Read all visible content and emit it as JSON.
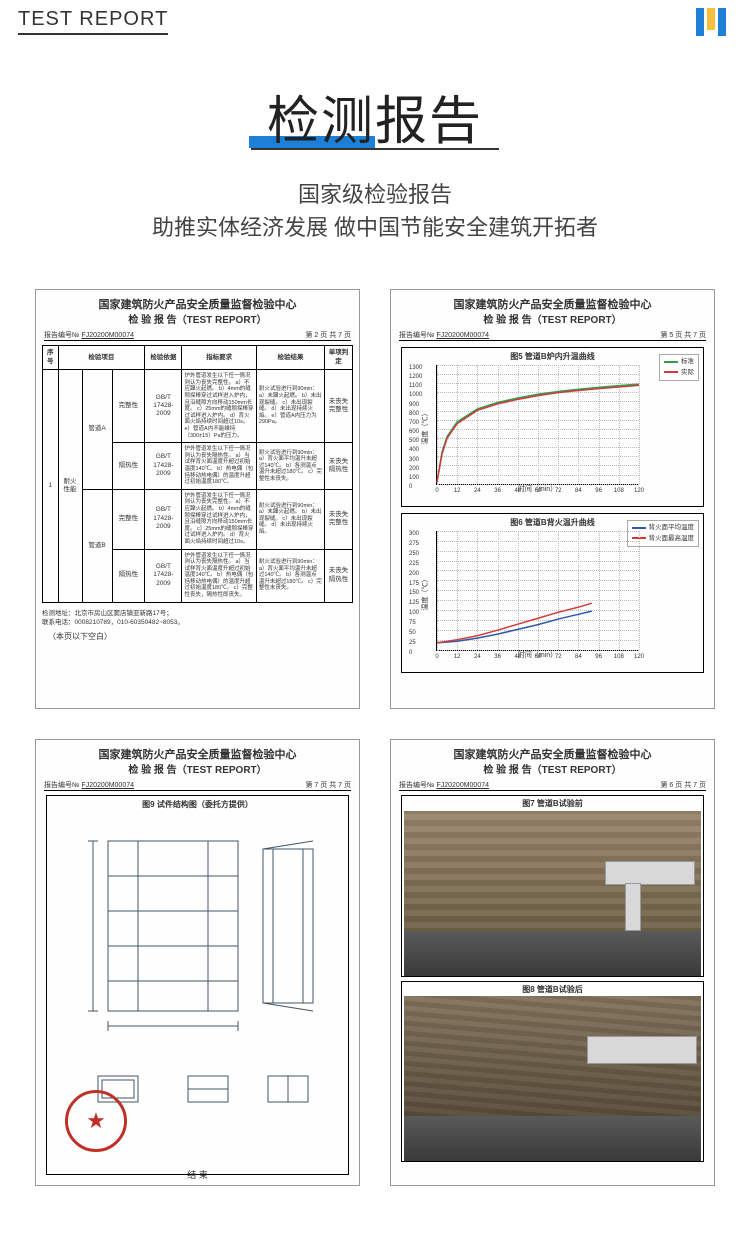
{
  "header": {
    "label": "TEST REPORT"
  },
  "title": {
    "main": "检测报告",
    "sub_line1": "国家级检验报告",
    "sub_line2": "助推实体经济发展 做中国节能安全建筑开拓者"
  },
  "colors": {
    "accent_blue": "#1e7fd6",
    "accent_yellow": "#f5c13d",
    "text_dark": "#333333",
    "stamp_red": "#c03028",
    "series_green": "#2e9e4a",
    "series_red": "#d23a3a",
    "series_blue": "#2e5aaa"
  },
  "report_common": {
    "org": "国家建筑防火产品安全质量监督检验中心",
    "title": "检 验 报 告（TEST REPORT）",
    "ref_prefix": "报告编号№",
    "ref_num": "FJ20200M00074"
  },
  "card_table": {
    "page": "第 2 页 共 7 页",
    "headers": [
      "序号",
      "检验项目",
      "检验依据",
      "指标要求",
      "检验结果",
      "单项判定"
    ],
    "row_seq": "1",
    "row_cat": "耐火\n性能",
    "groups": [
      {
        "group": "管道A",
        "rows": [
          {
            "item": "完整性",
            "std": "GB/T 17428-2009",
            "req": "炉外管道发生以下任一情况则认为丧失完整性。\na）不应蹿火起燃。\nb）4mm的缝隙探棒穿过试样进入炉内，且沿缝隙方向移动150mm长度。\nc）25mm的缝隙探棒穿过试样进入炉内。\nd）背火面火焰持续时间超过10s。\ne）管道A内不能维持（300±15）Pa的压力。",
            "res": "耐火试验进行到90min：\na）未蹿火起燃。\nb）未出现裂缝。\nc）未出现裂缝。\nd）未出现持续火焰。\ne）管道A内压力为290Pa。",
            "judge": "未丧失\n完整性"
          },
          {
            "item": "隔热性",
            "std": "GB/T 17428-2009",
            "req": "炉外管道发生以下任一情况则认为丧失隔热性。\na）当试样背火面温度升超过初始温度140℃。\nb）热电偶（包括移动热电偶）的温度升超过初始温度180℃。",
            "res": "耐火试验进行到90min：\na）背火面平均温升未超过140℃。\nb）各测温点温升未超过180℃。\nc）完整性未丧失。",
            "judge": "未丧失\n隔热性"
          }
        ]
      },
      {
        "group": "管道B",
        "rows": [
          {
            "item": "完整性",
            "std": "GB/T 17428-2009",
            "req": "炉外管道发生以下任一情况则认为丧失完整性。\na）不应蹿火起燃。\nb）4mm的缝隙探棒穿过试样进入炉内，且沿缝隙方向移动150mm长度。\nc）25mm的缝隙探棒穿过试样进入炉内。\nd）背火面火焰持续时间超过10s。",
            "res": "耐火试验进行到90min：\na）未蹿火起燃。\nb）未出现裂缝。\nc）未出现裂缝。\nd）未出现持续火焰。",
            "judge": "未丧失\n完整性"
          },
          {
            "item": "隔热性",
            "std": "GB/T 17428-2009",
            "req": "炉外管道发生以下任一情况则认为丧失隔热性。\na）当试样背火面温度升超过初始温度140℃。\nb）热电偶（包括移动热电偶）的温度升超过初始温度180℃。\nc）完整性丧失，隔热性即丧失。",
            "res": "耐火试验进行到90min：\na）背火面平均温升未超过140℃。\nb）各测温点温升未超过180℃。\nc）完整性未丧失。",
            "judge": "未丧失\n隔热性"
          }
        ]
      }
    ],
    "addr_label": "检测地址：",
    "addr": "北京市房山区窦店镇亚新路17号；",
    "tel_label": "联系电话：",
    "tel": "0008210789，010-60350482~8053。",
    "blank": "（本页以下空白）"
  },
  "card_charts": {
    "page": "第 5 页 共 7 页",
    "chart1": {
      "title": "图5 管道B炉内升温曲线",
      "y_label": "温度（℃）",
      "x_label": "时间（min）",
      "y_ticks": [
        0,
        100,
        200,
        300,
        400,
        500,
        600,
        700,
        800,
        900,
        1000,
        1100,
        1200,
        1300
      ],
      "y_max": 1300,
      "x_ticks": [
        0,
        12,
        24,
        36,
        48,
        60,
        72,
        84,
        96,
        108,
        120
      ],
      "x_max": 120,
      "legend": [
        {
          "label": "标准",
          "color": "#2e9e4a"
        },
        {
          "label": "实际",
          "color": "#d23a3a"
        }
      ],
      "series": [
        {
          "color": "#2e9e4a",
          "points": [
            [
              0,
              20
            ],
            [
              3,
              350
            ],
            [
              6,
              520
            ],
            [
              12,
              680
            ],
            [
              24,
              820
            ],
            [
              36,
              890
            ],
            [
              48,
              940
            ],
            [
              60,
              980
            ],
            [
              72,
              1010
            ],
            [
              84,
              1035
            ],
            [
              96,
              1055
            ],
            [
              108,
              1075
            ],
            [
              120,
              1090
            ]
          ]
        },
        {
          "color": "#d23a3a",
          "points": [
            [
              0,
              20
            ],
            [
              3,
              330
            ],
            [
              6,
              500
            ],
            [
              12,
              660
            ],
            [
              24,
              805
            ],
            [
              36,
              875
            ],
            [
              48,
              925
            ],
            [
              60,
              965
            ],
            [
              72,
              998
            ],
            [
              84,
              1022
            ],
            [
              96,
              1042
            ],
            [
              108,
              1060
            ],
            [
              120,
              1078
            ]
          ]
        }
      ]
    },
    "chart2": {
      "title": "图6 管道B背火温升曲线",
      "y_label": "温度（℃）",
      "x_label": "时间（min）",
      "y_ticks": [
        0,
        25,
        50,
        75,
        100,
        125,
        150,
        175,
        200,
        225,
        250,
        275,
        300
      ],
      "y_max": 300,
      "x_ticks": [
        0,
        12,
        24,
        36,
        48,
        60,
        72,
        84,
        96,
        108,
        120
      ],
      "x_max": 120,
      "legend": [
        {
          "label": "背火面平均温度",
          "color": "#2e5aaa"
        },
        {
          "label": "背火面最高温度",
          "color": "#d23a3a"
        }
      ],
      "series": [
        {
          "color": "#2e5aaa",
          "points": [
            [
              0,
              18
            ],
            [
              12,
              22
            ],
            [
              24,
              30
            ],
            [
              36,
              40
            ],
            [
              48,
              52
            ],
            [
              60,
              64
            ],
            [
              72,
              78
            ],
            [
              84,
              90
            ],
            [
              92,
              98
            ]
          ]
        },
        {
          "color": "#d23a3a",
          "points": [
            [
              0,
              18
            ],
            [
              12,
              26
            ],
            [
              24,
              36
            ],
            [
              36,
              50
            ],
            [
              48,
              65
            ],
            [
              60,
              80
            ],
            [
              72,
              95
            ],
            [
              84,
              108
            ],
            [
              92,
              118
            ]
          ]
        }
      ]
    }
  },
  "card_diagram": {
    "page": "第 7 页 共 7 页",
    "figure_title": "图9 试件结构图（委托方提供）",
    "footer": "结 束"
  },
  "card_photos": {
    "page": "第 6 页 共 7 页",
    "photo1_caption": "图7 管道B试验前",
    "photo2_caption": "图8 管道B试验后"
  }
}
